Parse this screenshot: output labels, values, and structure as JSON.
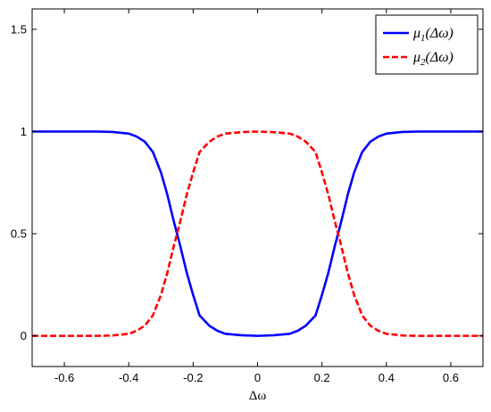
{
  "chart_data": {
    "type": "line",
    "title": "",
    "xlabel": "Δω",
    "ylabel": "",
    "xlim": [
      -0.7,
      0.7
    ],
    "ylim": [
      -0.15,
      1.6
    ],
    "xticks": [
      -0.6,
      -0.4,
      -0.2,
      0,
      0.2,
      0.4,
      0.6
    ],
    "xtick_labels": [
      "-0.6",
      "-0.4",
      "-0.2",
      "0",
      "0.2",
      "0.4",
      "0.6"
    ],
    "yticks": [
      0,
      0.5,
      1,
      1.5
    ],
    "ytick_labels": [
      "0",
      "0.5",
      "1",
      "1.5"
    ],
    "grid": false,
    "legend_position": "top-right",
    "x": [
      -0.7,
      -0.6,
      -0.5,
      -0.45,
      -0.4,
      -0.375,
      -0.35,
      -0.325,
      -0.3,
      -0.28,
      -0.26,
      -0.25,
      -0.24,
      -0.22,
      -0.2,
      -0.18,
      -0.15,
      -0.125,
      -0.1,
      -0.05,
      0,
      0.05,
      0.1,
      0.125,
      0.15,
      0.18,
      0.2,
      0.22,
      0.24,
      0.25,
      0.26,
      0.28,
      0.3,
      0.325,
      0.35,
      0.375,
      0.4,
      0.45,
      0.5,
      0.6,
      0.7
    ],
    "series": [
      {
        "name": "μ1(Δω)",
        "color": "#0000ff",
        "style": "solid",
        "values": [
          1,
          1,
          1,
          0.998,
          0.99,
          0.975,
          0.95,
          0.9,
          0.8,
          0.69,
          0.56,
          0.5,
          0.44,
          0.31,
          0.2,
          0.1,
          0.05,
          0.025,
          0.01,
          0.003,
          0,
          0.003,
          0.01,
          0.025,
          0.05,
          0.1,
          0.2,
          0.31,
          0.44,
          0.5,
          0.56,
          0.69,
          0.8,
          0.9,
          0.95,
          0.975,
          0.99,
          0.998,
          1,
          1,
          1
        ]
      },
      {
        "name": "μ2(Δω)",
        "color": "#ff0000",
        "style": "dashed",
        "values": [
          0,
          0,
          0,
          0.002,
          0.01,
          0.025,
          0.05,
          0.1,
          0.2,
          0.31,
          0.44,
          0.5,
          0.56,
          0.69,
          0.8,
          0.9,
          0.95,
          0.975,
          0.99,
          0.997,
          1,
          0.997,
          0.99,
          0.975,
          0.95,
          0.9,
          0.8,
          0.69,
          0.56,
          0.5,
          0.44,
          0.31,
          0.2,
          0.1,
          0.05,
          0.025,
          0.01,
          0.002,
          0,
          0,
          0
        ]
      }
    ],
    "legend": [
      {
        "base": "μ",
        "sub": "1",
        "arg": "(Δω)"
      },
      {
        "base": "μ",
        "sub": "2",
        "arg": "(Δω)"
      }
    ]
  }
}
